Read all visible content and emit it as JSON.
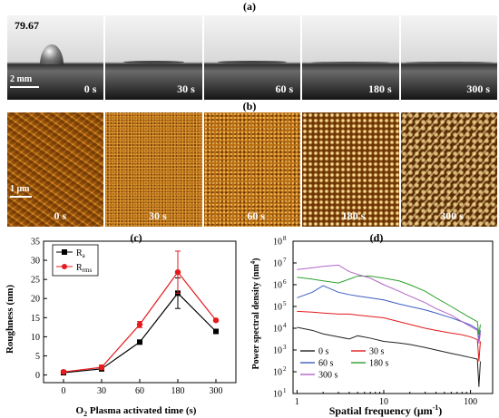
{
  "panel_a": {
    "label": "(a)",
    "contact_angle": "79.67",
    "scale": "2 mm",
    "times": [
      "0 s",
      "30 s",
      "60 s",
      "180 s",
      "300 s"
    ]
  },
  "panel_b": {
    "label": "(b)",
    "scale": "1 μm",
    "times": [
      "0 s",
      "30 s",
      "60 s",
      "180 s",
      "300 s"
    ]
  },
  "chart_data": [
    {
      "panel_label": "(c)",
      "type": "line",
      "xlabel_prefix": "O",
      "xlabel_sub": "2",
      "xlabel_rest": " Plasma activated time (s)",
      "ylabel": "Roughness (nm)",
      "x": [
        0,
        30,
        60,
        180,
        300
      ],
      "x_tick_labels": [
        "0",
        "30",
        "60",
        "180",
        "300"
      ],
      "y_ticks": [
        0,
        5,
        10,
        15,
        20,
        25,
        30,
        35
      ],
      "ylim": [
        -2,
        35
      ],
      "legend_position": "top-left",
      "series": [
        {
          "name_main": "R",
          "name_sub": "a",
          "color": "#000000",
          "marker": "square",
          "values": [
            0.6,
            1.6,
            8.6,
            21.4,
            11.4
          ],
          "errors": [
            0.2,
            0.5,
            0.3,
            4.0,
            0.3
          ]
        },
        {
          "name_main": "R",
          "name_sub": "rms",
          "color": "#e41a1c",
          "marker": "circle",
          "values": [
            0.8,
            2.0,
            13.2,
            26.9,
            14.3
          ],
          "errors": [
            0.3,
            0.6,
            0.8,
            5.5,
            0.3
          ]
        }
      ]
    },
    {
      "panel_label": "(d)",
      "type": "line",
      "xscale": "log",
      "yscale": "log",
      "xlabel_main": "Spatial frequency (μm",
      "xlabel_sup": "-1",
      "xlabel_end": ")",
      "ylabel_main": "Power spectral density (nm",
      "ylabel_sup": "4",
      "ylabel_end": ")",
      "x_ticks": [
        1,
        10,
        100
      ],
      "x_tick_labels": [
        "1",
        "10",
        "100"
      ],
      "y_ticks": [
        1,
        2,
        3,
        4,
        5,
        6,
        7,
        8
      ],
      "y_tick_labels": [
        "10",
        "10",
        "10",
        "10",
        "10",
        "10",
        "10",
        "10"
      ],
      "legend_position": "bottom-left",
      "series": [
        {
          "name": "0 s",
          "color": "#222222",
          "x": [
            1,
            1.5,
            2,
            3,
            4,
            5,
            7,
            10,
            15,
            20,
            30,
            40,
            60,
            80,
            100,
            120,
            125,
            130
          ],
          "y": [
            11000,
            8000,
            5500,
            4000,
            3200,
            4500,
            3500,
            2500,
            2100,
            1800,
            1300,
            1000,
            700,
            550,
            450,
            380,
            20,
            300
          ]
        },
        {
          "name": "30 s",
          "color": "#e41a1c",
          "x": [
            1,
            1.5,
            2,
            3,
            4,
            5,
            7,
            10,
            15,
            20,
            30,
            40,
            60,
            80,
            100,
            120,
            125,
            130
          ],
          "y": [
            60000,
            55000,
            50000,
            45000,
            45000,
            40000,
            35000,
            30000,
            20000,
            15000,
            10000,
            8000,
            6000,
            5000,
            4000,
            3000,
            300,
            2500
          ]
        },
        {
          "name": "60 s",
          "color": "#3b5fc0",
          "x": [
            1,
            1.5,
            2,
            3,
            4,
            5,
            7,
            10,
            15,
            20,
            30,
            40,
            60,
            80,
            100,
            120,
            125,
            130
          ],
          "y": [
            250000,
            450000,
            900000,
            450000,
            350000,
            300000,
            250000,
            200000,
            130000,
            100000,
            70000,
            50000,
            30000,
            20000,
            14000,
            9000,
            3000,
            8000
          ]
        },
        {
          "name": "180 s",
          "color": "#2ca02c",
          "x": [
            1,
            1.5,
            2,
            3,
            4,
            5,
            7,
            10,
            15,
            20,
            30,
            40,
            60,
            80,
            100,
            120,
            125,
            130
          ],
          "y": [
            2200000,
            1800000,
            1500000,
            1200000,
            1800000,
            2500000,
            2500000,
            2000000,
            1500000,
            1000000,
            500000,
            250000,
            100000,
            50000,
            30000,
            20000,
            5000,
            15000
          ]
        },
        {
          "name": "300 s",
          "color": "#b264c8",
          "x": [
            1,
            1.5,
            2,
            3,
            4,
            5,
            7,
            10,
            15,
            20,
            30,
            40,
            60,
            80,
            100,
            120,
            125,
            130
          ],
          "y": [
            5000000,
            6000000,
            7000000,
            8000000,
            4000000,
            3000000,
            2000000,
            1000000,
            500000,
            300000,
            150000,
            80000,
            40000,
            20000,
            12000,
            8000,
            2000,
            6000
          ]
        }
      ]
    }
  ]
}
